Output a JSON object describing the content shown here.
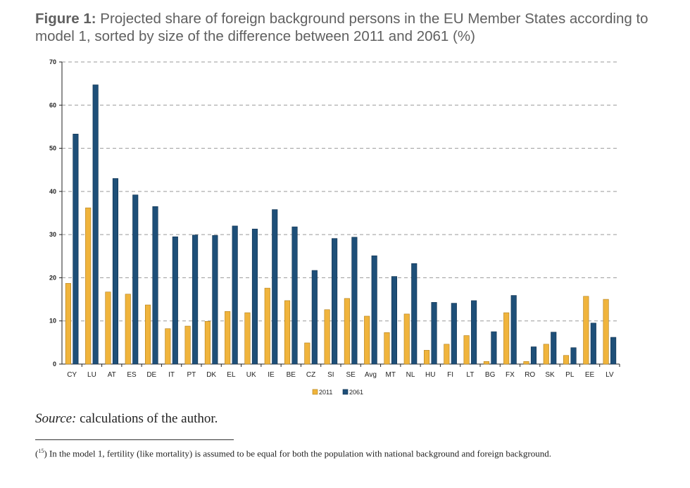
{
  "title": {
    "bold": "Figure 1:",
    "text": " Projected share of foreign background persons in the EU Member States according to model 1, sorted by size of the difference between 2011 and 2061 (%)"
  },
  "colors": {
    "s2011": "#F0B43C",
    "s2061": "#1E4F78",
    "grid": "#9a9a9a"
  },
  "chart_data": {
    "type": "bar",
    "categories": [
      "CY",
      "LU",
      "AT",
      "ES",
      "DE",
      "IT",
      "PT",
      "DK",
      "EL",
      "UK",
      "IE",
      "BE",
      "CZ",
      "SI",
      "SE",
      "Avg",
      "MT",
      "NL",
      "HU",
      "FI",
      "LT",
      "BG",
      "FX",
      "RO",
      "SK",
      "PL",
      "EE",
      "LV"
    ],
    "series": [
      {
        "name": "2011",
        "values": [
          18.7,
          36.2,
          16.7,
          16.2,
          13.7,
          8.2,
          8.8,
          9.9,
          12.2,
          11.9,
          17.6,
          14.7,
          4.9,
          12.6,
          15.2,
          11.1,
          7.3,
          11.6,
          3.2,
          4.6,
          6.6,
          0.6,
          11.9,
          0.6,
          4.6,
          2.0,
          15.7,
          15.0
        ]
      },
      {
        "name": "2061",
        "values": [
          53.3,
          64.7,
          43.0,
          39.2,
          36.5,
          29.5,
          29.9,
          29.8,
          32.0,
          31.3,
          35.8,
          31.8,
          21.7,
          29.1,
          29.4,
          25.1,
          20.3,
          23.3,
          14.3,
          14.1,
          14.7,
          7.5,
          15.9,
          4.0,
          7.4,
          3.8,
          9.5,
          6.2
        ]
      }
    ],
    "ylim": [
      0,
      70
    ],
    "yticks": [
      "0",
      "10",
      "20",
      "30",
      "40",
      "50",
      "60",
      "70"
    ],
    "grid": true,
    "legend_position": "bottom-center"
  },
  "source": {
    "label": "Source:",
    "text": " calculations of the author."
  },
  "footnote": {
    "marker": "15",
    "text": " In the model 1, fertility (like mortality) is assumed to be equal for both the population with national background and foreign background."
  }
}
